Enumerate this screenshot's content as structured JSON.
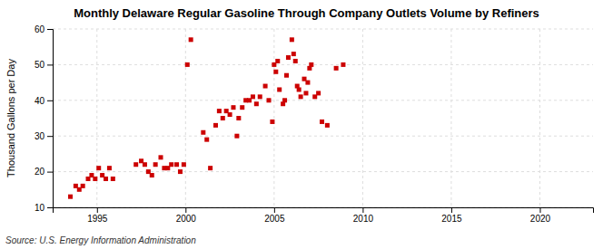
{
  "chart_data": {
    "type": "scatter",
    "title": "Monthly Delaware Regular Gasoline Through Company Outlets Volume by Refiners",
    "ylabel": "Thousand Gallons per Day",
    "source": "Source: U.S. Energy Information Administration",
    "color": "#CC0000",
    "marker": "square",
    "grid": true,
    "xlim": [
      1992.5,
      2023
    ],
    "ylim": [
      10,
      60
    ],
    "xticks": [
      1995,
      2000,
      2005,
      2010,
      2015,
      2020
    ],
    "yticks": [
      10,
      20,
      30,
      40,
      50,
      60
    ],
    "x": [
      1993.5,
      1993.8,
      1994.0,
      1994.2,
      1994.5,
      1994.7,
      1994.9,
      1995.1,
      1995.3,
      1995.5,
      1995.7,
      1995.9,
      1997.2,
      1997.5,
      1997.7,
      1997.9,
      1998.1,
      1998.3,
      1998.6,
      1998.8,
      1999.0,
      1999.2,
      1999.5,
      1999.7,
      1999.9,
      2000.1,
      2000.3,
      2001.0,
      2001.2,
      2001.4,
      2001.7,
      2001.9,
      2002.1,
      2002.3,
      2002.5,
      2002.7,
      2002.9,
      2003.0,
      2003.2,
      2003.4,
      2003.6,
      2003.8,
      2004.0,
      2004.2,
      2004.5,
      2004.7,
      2004.9,
      2005.0,
      2005.1,
      2005.2,
      2005.3,
      2005.5,
      2005.6,
      2005.7,
      2005.8,
      2006.0,
      2006.1,
      2006.2,
      2006.3,
      2006.4,
      2006.5,
      2006.7,
      2006.8,
      2006.9,
      2007.0,
      2007.1,
      2007.3,
      2007.5,
      2007.7,
      2008.0,
      2008.5,
      2008.9
    ],
    "values": [
      13,
      16,
      15,
      16,
      18,
      19,
      18,
      21,
      19,
      18,
      21,
      18,
      22,
      23,
      22,
      20,
      19,
      22,
      24,
      21,
      21,
      22,
      22,
      20,
      22,
      50,
      57,
      31,
      29,
      21,
      33,
      37,
      35,
      37,
      36,
      38,
      30,
      35,
      38,
      40,
      40,
      41,
      39,
      41,
      44,
      40,
      34,
      50,
      48,
      51,
      43,
      39,
      40,
      47,
      52,
      57,
      53,
      51,
      44,
      43,
      41,
      46,
      42,
      45,
      49,
      50,
      41,
      42,
      34,
      33,
      49,
      50
    ]
  }
}
